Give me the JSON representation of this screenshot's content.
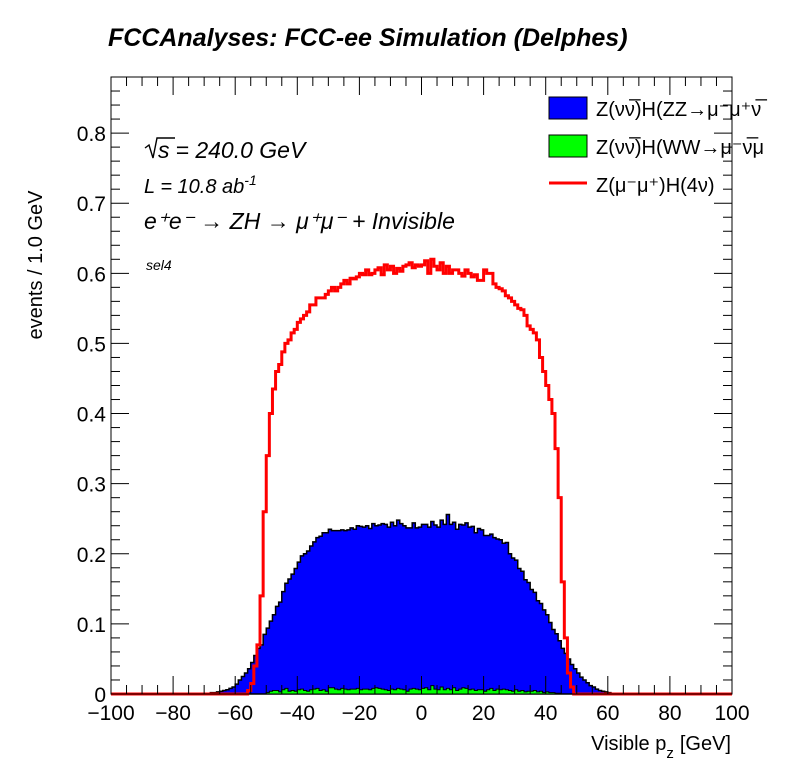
{
  "chart_data": {
    "type": "histogram",
    "title": "FCCAnalyses: FCC-ee Simulation (Delphes)",
    "xlabel": "Visible p_z [GeV]",
    "xlabel_main": "Visible p",
    "xlabel_sub": "z",
    "xlabel_unit": "[GeV]",
    "ylabel": "events / 1.0 GeV",
    "xlim": [
      -100,
      100
    ],
    "ylim": [
      0,
      0.88
    ],
    "bin_width": 1.0,
    "x_ticks": [
      -100,
      -80,
      -60,
      -40,
      -20,
      0,
      20,
      40,
      60,
      80,
      100
    ],
    "x_tick_labels": [
      "−100",
      "−80",
      "−60",
      "−40",
      "−20",
      "0",
      "20",
      "40",
      "60",
      "80",
      "100"
    ],
    "y_ticks": [
      0,
      0.1,
      0.2,
      0.3,
      0.4,
      0.5,
      0.6,
      0.7,
      0.8
    ],
    "y_tick_labels": [
      "0",
      "0.1",
      "0.2",
      "0.3",
      "0.4",
      "0.5",
      "0.6",
      "0.7",
      "0.8"
    ],
    "grid": false,
    "legend_position": "top-right",
    "annotations": {
      "sqrt_s": "= 240.0 GeV",
      "sqrt_s_symbol": "s",
      "lumi": "L = 10.8 ab",
      "lumi_exp": "-1",
      "process": "e⁺e⁻ → ZH → μ⁺μ⁻ + Invisible",
      "selection": "sel4"
    },
    "series": [
      {
        "name": "Z(νν̅)H(ZZ→μ⁻μ⁺νν̅)",
        "legend_label": "Z(νν̅)H(ZZ→μ⁻μ⁺ν̅",
        "style": "stacked-fill",
        "color": "#0000ff",
        "x_start": -70,
        "values": [
          0.0,
          0.0,
          0.002,
          0.002,
          0.003,
          0.004,
          0.005,
          0.006,
          0.008,
          0.01,
          0.014,
          0.02,
          0.025,
          0.03,
          0.036,
          0.045,
          0.055,
          0.065,
          0.07,
          0.085,
          0.092,
          0.1,
          0.108,
          0.12,
          0.128,
          0.14,
          0.15,
          0.16,
          0.166,
          0.175,
          0.182,
          0.19,
          0.195,
          0.2,
          0.205,
          0.21,
          0.215,
          0.22,
          0.224,
          0.226,
          0.226,
          0.224,
          0.226,
          0.227,
          0.226,
          0.226,
          0.228,
          0.23,
          0.228,
          0.232,
          0.233,
          0.231,
          0.233,
          0.23,
          0.235,
          0.231,
          0.233,
          0.236,
          0.236,
          0.233,
          0.238,
          0.234,
          0.24,
          0.236,
          0.234,
          0.233,
          0.23,
          0.236,
          0.23,
          0.232,
          0.234,
          0.233,
          0.232,
          0.234,
          0.234,
          0.232,
          0.238,
          0.236,
          0.248,
          0.236,
          0.236,
          0.23,
          0.235,
          0.232,
          0.236,
          0.232,
          0.232,
          0.225,
          0.23,
          0.228,
          0.222,
          0.22,
          0.22,
          0.218,
          0.214,
          0.214,
          0.208,
          0.21,
          0.195,
          0.19,
          0.185,
          0.175,
          0.17,
          0.16,
          0.155,
          0.145,
          0.14,
          0.13,
          0.125,
          0.118,
          0.11,
          0.1,
          0.09,
          0.085,
          0.075,
          0.065,
          0.058,
          0.05,
          0.042,
          0.036,
          0.03,
          0.024,
          0.02,
          0.016,
          0.012,
          0.01,
          0.007,
          0.005,
          0.004,
          0.003,
          0.002,
          0.001,
          0.0,
          0.0,
          0.0,
          0.0,
          0.0
        ]
      },
      {
        "name": "Z(νν̅)H(WW→μ⁻ν̅μν)",
        "legend_label": "Z(νν̅)H(WW→μ⁻ν̅μ",
        "style": "stacked-fill",
        "color": "#00ff00",
        "x_start": -50,
        "values": [
          0.002,
          0.004,
          0.005,
          0.005,
          0.003,
          0.006,
          0.008,
          0.004,
          0.005,
          0.004,
          0.006,
          0.007,
          0.005,
          0.004,
          0.006,
          0.007,
          0.008,
          0.005,
          0.006,
          0.004,
          0.009,
          0.009,
          0.007,
          0.006,
          0.008,
          0.007,
          0.006,
          0.007,
          0.007,
          0.008,
          0.006,
          0.007,
          0.007,
          0.006,
          0.008,
          0.009,
          0.008,
          0.007,
          0.006,
          0.005,
          0.007,
          0.006,
          0.008,
          0.007,
          0.006,
          0.004,
          0.007,
          0.008,
          0.007,
          0.006,
          0.008,
          0.009,
          0.006,
          0.012,
          0.007,
          0.006,
          0.01,
          0.006,
          0.008,
          0.006,
          0.009,
          0.005,
          0.007,
          0.009,
          0.008,
          0.006,
          0.007,
          0.005,
          0.006,
          0.006,
          0.004,
          0.006,
          0.008,
          0.005,
          0.007,
          0.006,
          0.007,
          0.006,
          0.005,
          0.004,
          0.006,
          0.004,
          0.005,
          0.003,
          0.004,
          0.004,
          0.005,
          0.003,
          0.004,
          0.002,
          0.003,
          0.002,
          0.002,
          0.001,
          0.001,
          0.0,
          0.0,
          0.0,
          0.0,
          0.0
        ]
      },
      {
        "name": "Z(μ⁻μ⁺)H(4ν)",
        "legend_label": "Z(μ⁻μ⁺)H(4ν)",
        "style": "line",
        "color": "#ff0000",
        "x_start": -58,
        "values": [
          0.0,
          0.0,
          0.005,
          0.015,
          0.04,
          0.07,
          0.14,
          0.26,
          0.34,
          0.4,
          0.435,
          0.46,
          0.47,
          0.488,
          0.5,
          0.505,
          0.515,
          0.52,
          0.53,
          0.535,
          0.54,
          0.545,
          0.555,
          0.555,
          0.565,
          0.565,
          0.565,
          0.57,
          0.575,
          0.58,
          0.575,
          0.58,
          0.585,
          0.59,
          0.585,
          0.593,
          0.592,
          0.595,
          0.6,
          0.598,
          0.605,
          0.598,
          0.6,
          0.605,
          0.608,
          0.598,
          0.612,
          0.605,
          0.61,
          0.6,
          0.607,
          0.603,
          0.61,
          0.612,
          0.615,
          0.608,
          0.612,
          0.61,
          0.612,
          0.618,
          0.6,
          0.62,
          0.61,
          0.605,
          0.615,
          0.6,
          0.61,
          0.6,
          0.605,
          0.605,
          0.6,
          0.596,
          0.605,
          0.6,
          0.595,
          0.598,
          0.59,
          0.59,
          0.605,
          0.6,
          0.6,
          0.585,
          0.58,
          0.578,
          0.575,
          0.568,
          0.565,
          0.56,
          0.555,
          0.55,
          0.548,
          0.54,
          0.525,
          0.52,
          0.515,
          0.505,
          0.48,
          0.46,
          0.44,
          0.42,
          0.4,
          0.35,
          0.28,
          0.16,
          0.08,
          0.03,
          0.01,
          0.0,
          0.0,
          0.0,
          0.0,
          0.0,
          0.0,
          0.0,
          0.0,
          0.0
        ]
      }
    ]
  }
}
